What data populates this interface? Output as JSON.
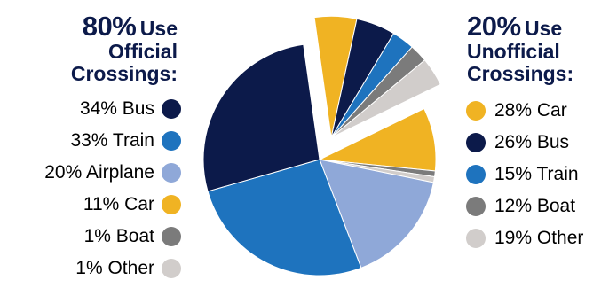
{
  "chart_data": [
    {
      "type": "pie",
      "title_pct": "80%",
      "title_word": "Use",
      "title_rest": "Official",
      "title_rest2": "Crossings:",
      "categories": [
        "Bus",
        "Train",
        "Airplane",
        "Car",
        "Boat",
        "Other"
      ],
      "values": [
        34,
        33,
        20,
        11,
        1,
        1
      ],
      "labels": [
        "34% Bus",
        "33% Train",
        "20% Airplane",
        "11% Car",
        "1% Boat",
        "1% Other"
      ],
      "colors": [
        "#0c1a4a",
        "#1e73be",
        "#8fa8d8",
        "#f0b323",
        "#7b7b7b",
        "#d1cdcb"
      ],
      "share_of_total": 80
    },
    {
      "type": "pie",
      "title_pct": "20%",
      "title_word": "Use",
      "title_rest": "Unofficial",
      "title_rest2": "Crossings:",
      "categories": [
        "Car",
        "Bus",
        "Train",
        "Boat",
        "Other"
      ],
      "values": [
        28,
        26,
        15,
        12,
        19
      ],
      "labels": [
        "28% Car",
        "26% Bus",
        "15% Train",
        "12% Boat",
        "19% Other"
      ],
      "colors": [
        "#f0b323",
        "#0c1a4a",
        "#1e73be",
        "#7b7b7b",
        "#d1cdcb"
      ],
      "share_of_total": 20,
      "exploded": true
    }
  ]
}
